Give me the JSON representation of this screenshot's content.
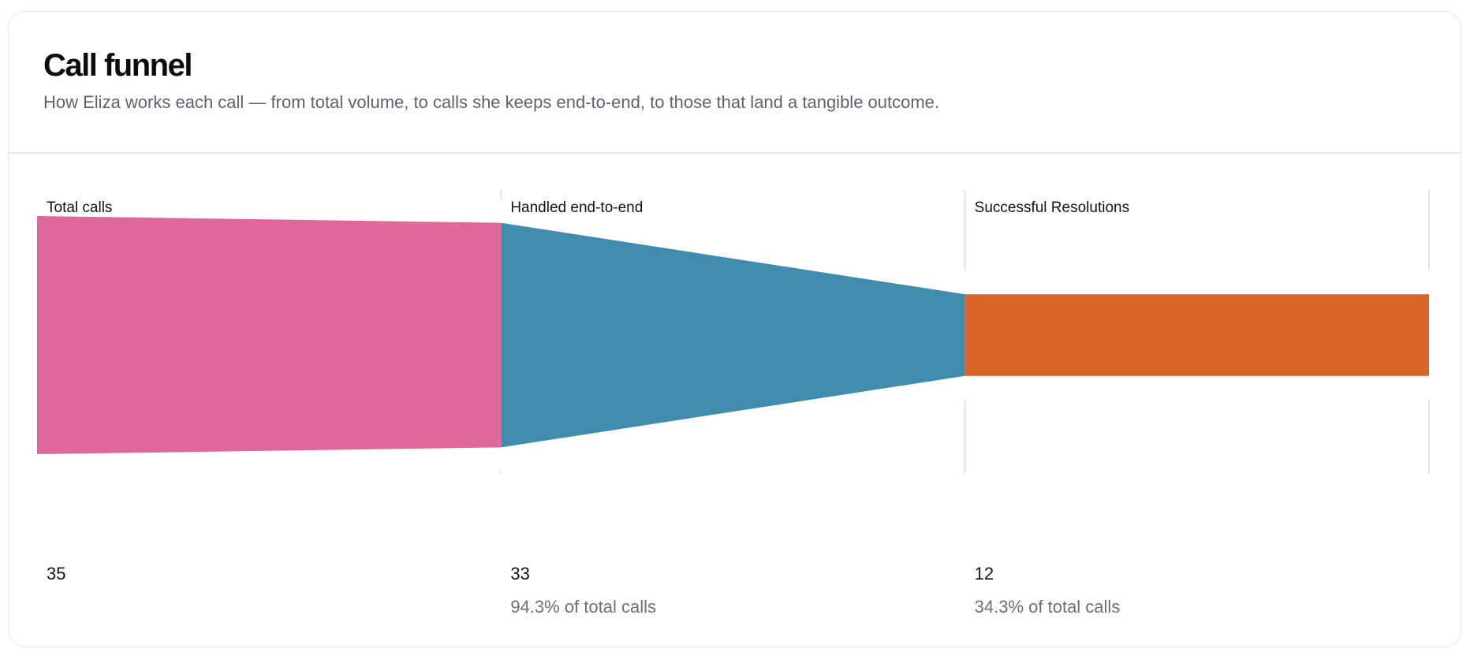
{
  "header": {
    "title": "Call funnel",
    "subtitle": "How Eliza works each call — from total volume, to calls she keeps end-to-end, to those that land a tangible outcome."
  },
  "chart_data": {
    "type": "funnel",
    "stages": [
      {
        "label": "Total calls",
        "value": 35,
        "pct_text": "",
        "color": "#E0679A"
      },
      {
        "label": "Handled end-to-end",
        "value": 33,
        "pct_text": "94.3% of total calls",
        "color": "#418CAD"
      },
      {
        "label": "Successful Resolutions",
        "value": 12,
        "pct_text": "34.3% of total calls",
        "color": "#D9652B"
      }
    ]
  },
  "colors": {
    "divider": "#e4e6ea",
    "guide": "#d5d8dd",
    "text_primary": "#111318",
    "text_secondary": "#6b6f7a"
  }
}
